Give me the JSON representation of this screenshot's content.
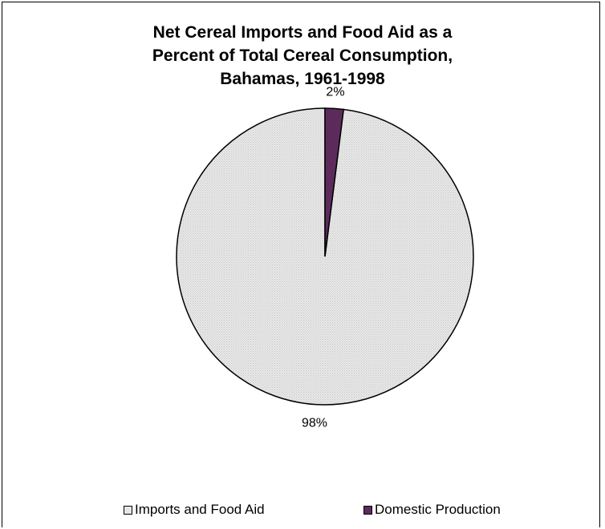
{
  "chart_data": {
    "type": "pie",
    "title_lines": [
      "Net Cereal Imports and Food Aid as a",
      "Percent of Total Cereal Consumption,",
      "Bahamas, 1961-1998"
    ],
    "slices": [
      {
        "name": "Imports and Food Aid",
        "value": 98,
        "label": "98%",
        "color": "#e6e6e6"
      },
      {
        "name": "Domestic Production",
        "value": 2,
        "label": "2%",
        "color": "#5c2b5c"
      }
    ],
    "legend_position": "bottom"
  }
}
